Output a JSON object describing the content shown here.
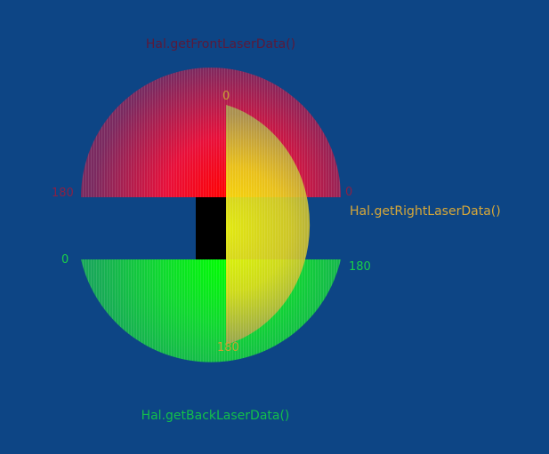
{
  "colors": {
    "background": "#0d4585",
    "front_label": "#5a1a3a",
    "right_label": "#d8a838",
    "back_label": "#13c04a",
    "front_text": "#8a2045",
    "back_text": "#19d048",
    "right_text": "#c9a132"
  },
  "sensors": {
    "front": {
      "label": "Hal.getFrontLaserData()",
      "start_angle_label": "0",
      "end_angle_label": "180"
    },
    "right": {
      "label": "Hal.getRightLaserData()",
      "start_angle_label": "0",
      "end_angle_label": "180"
    },
    "back": {
      "label": "Hal.getBackLaserData()",
      "start_angle_label": "0",
      "end_angle_label": "180"
    }
  },
  "icons": {
    "robot": "robot-body-icon"
  }
}
